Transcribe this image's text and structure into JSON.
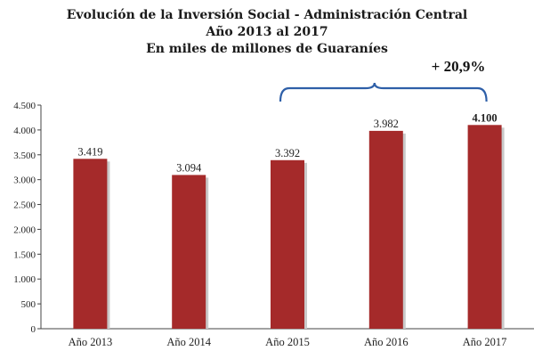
{
  "chart_data": {
    "type": "bar",
    "title": "Evolución de la Inversión Social - Administración Central",
    "subtitle": "Año 2013 al 2017",
    "subtitle2": "En miles de millones de Guaraníes",
    "categories": [
      "Año 2013",
      "Año 2014",
      "Año 2015",
      "Año 2016",
      "Año 2017"
    ],
    "values": [
      3419,
      3094,
      3392,
      3982,
      4100
    ],
    "value_labels": [
      "3.419",
      "3.094",
      "3.392",
      "3.982",
      "4.100"
    ],
    "ylim": [
      0,
      4500
    ],
    "yticks": [
      0,
      500,
      1000,
      1500,
      2000,
      2500,
      3000,
      3500,
      4000,
      4500
    ],
    "ytick_labels": [
      "0",
      "500",
      "1.000",
      "1.500",
      "2.000",
      "2.500",
      "3.000",
      "3.500",
      "4.000",
      "4.500"
    ],
    "grid": false,
    "bar_color": "#a52a2a",
    "annotation": "+ 20,9%",
    "annotation_color": "#2e5fa8"
  }
}
